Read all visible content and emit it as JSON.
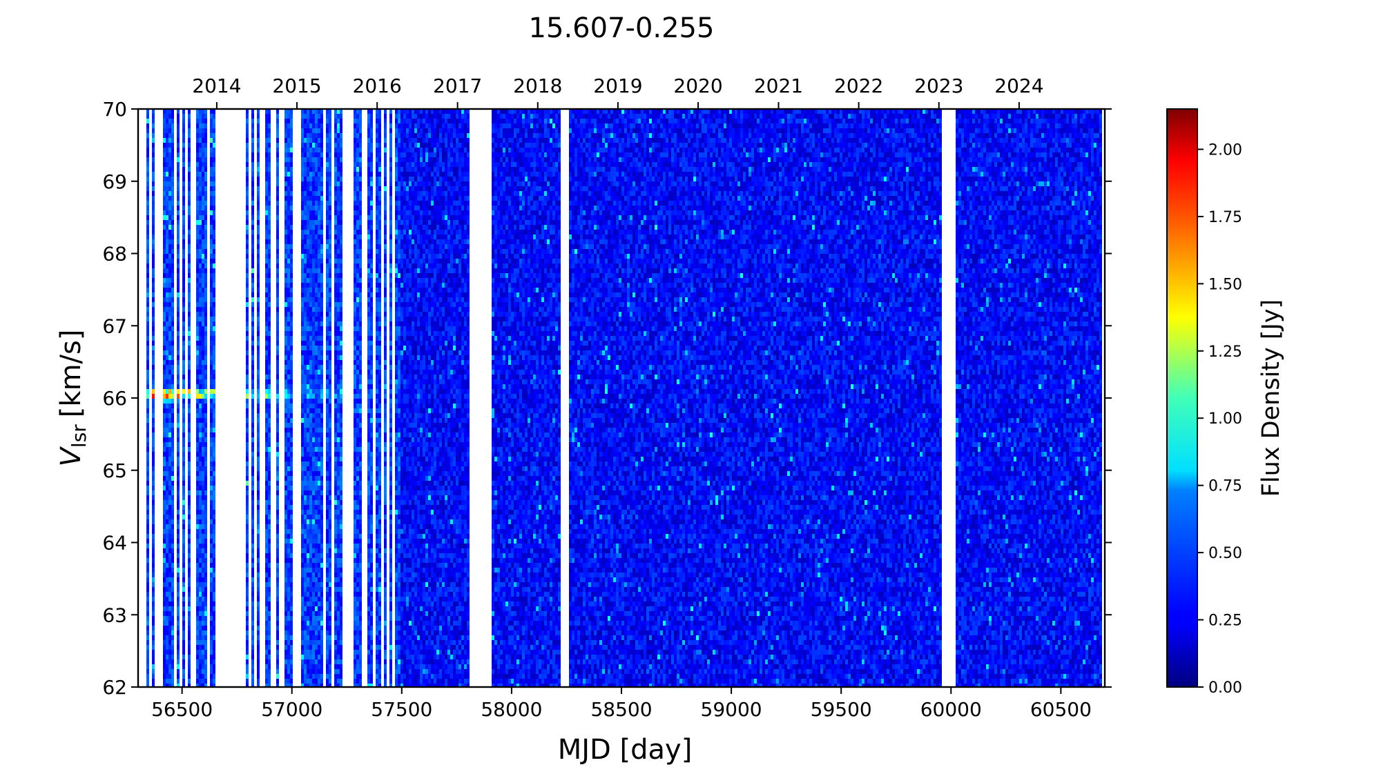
{
  "chart_data": {
    "type": "heatmap",
    "title": "15.607-0.255",
    "xlabel": "MJD [day]",
    "ylabel_main": "V",
    "ylabel_sub": "lsr",
    "ylabel_unit": "[km/s]",
    "xlim": [
      56300,
      60700
    ],
    "ylim": [
      62,
      70
    ],
    "x_ticks": [
      56500,
      57000,
      57500,
      58000,
      58500,
      59000,
      59500,
      60000,
      60500
    ],
    "x_tick_labels": [
      "56500",
      "57000",
      "57500",
      "58000",
      "58500",
      "59000",
      "59500",
      "60000",
      "60500"
    ],
    "y_ticks": [
      62,
      63,
      64,
      65,
      66,
      67,
      68,
      69,
      70
    ],
    "y_tick_labels": [
      "62",
      "63",
      "64",
      "65",
      "66",
      "67",
      "68",
      "69",
      "70"
    ],
    "top_axis": {
      "label_positions_mjd": [
        56658,
        57023,
        57388,
        57754,
        58119,
        58484,
        58849,
        59215,
        59580,
        59945,
        60310
      ],
      "labels": [
        "2014",
        "2015",
        "2016",
        "2017",
        "2018",
        "2019",
        "2020",
        "2021",
        "2022",
        "2023",
        "2024"
      ]
    },
    "colorbar": {
      "label": "Flux Density [Jy]",
      "range": [
        0,
        2.15
      ],
      "ticks": [
        0.0,
        0.25,
        0.5,
        0.75,
        1.0,
        1.25,
        1.5,
        1.75,
        2.0
      ],
      "tick_labels": [
        "0.00",
        "0.25",
        "0.50",
        "0.75",
        "1.00",
        "1.25",
        "1.50",
        "1.75",
        "2.00"
      ],
      "colormap": "jet"
    },
    "data_gaps_mjd": [
      [
        56650,
        56780
      ],
      [
        57245,
        57275
      ],
      [
        57810,
        57915
      ],
      [
        58225,
        58265
      ],
      [
        59960,
        60020
      ]
    ],
    "persistent_feature": {
      "velocity_kms": 66.05,
      "mjd_range": [
        56320,
        57560
      ],
      "peak_flux_jy": 2.0
    }
  }
}
